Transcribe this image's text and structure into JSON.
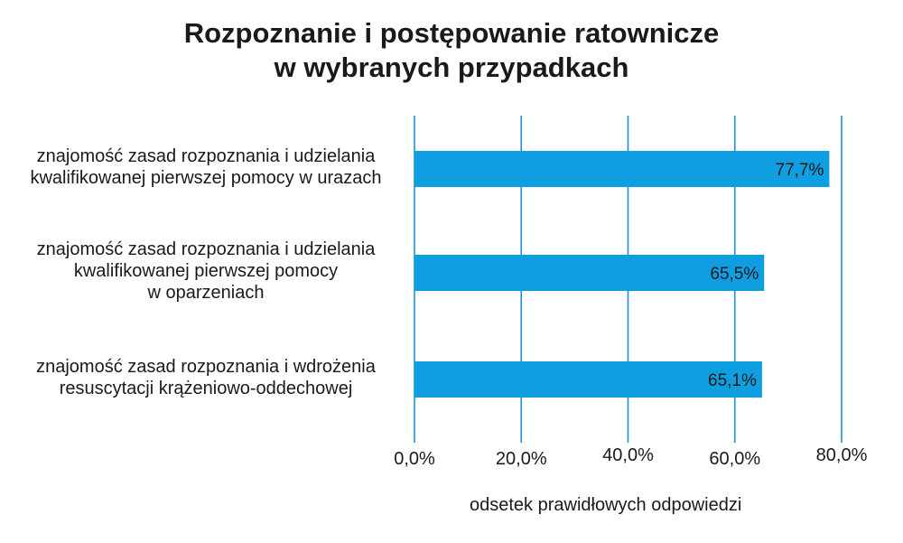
{
  "chart_data": {
    "type": "bar",
    "orientation": "horizontal",
    "title_lines": [
      "Rozpoznanie i postępowanie ratownicze",
      "w wybranych przypadkach"
    ],
    "categories": [
      [
        "znajomość zasad rozpoznania i udzielania",
        "kwalifikowanej pierwszej pomocy w urazach"
      ],
      [
        "znajomość zasad rozpoznania i udzielania",
        "kwalifikowanej pierwszej pomocy",
        "w oparzeniach"
      ],
      [
        "znajomość zasad rozpoznania i wdrożenia",
        "resuscytacji krążeniowo-oddechowej"
      ]
    ],
    "values": [
      77.7,
      65.5,
      65.1
    ],
    "data_labels": [
      "77,7%",
      "65,5%",
      "65,1%"
    ],
    "xlim": [
      0,
      80
    ],
    "xticks": [
      0,
      20,
      40,
      60,
      80
    ],
    "xtick_labels": [
      "0,0%",
      "20,0%",
      "40,0%",
      "60,0%",
      "80,0%"
    ],
    "xlabel": "odsetek prawidłowych odpowiedzi",
    "ylabel": "",
    "grid": "vertical",
    "bar_color": "#0f9ee0",
    "grid_color": "#1a8fd1"
  }
}
